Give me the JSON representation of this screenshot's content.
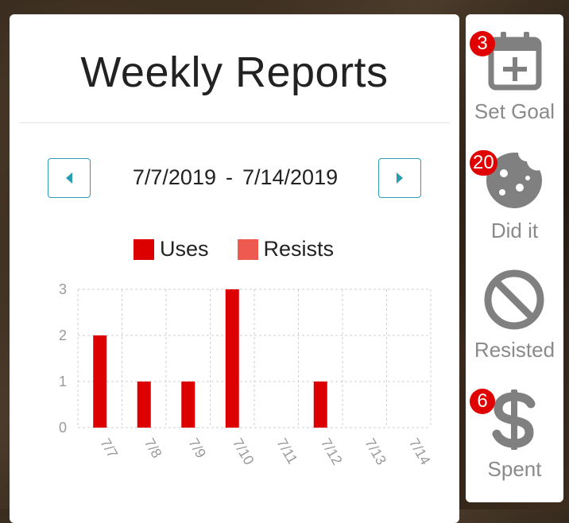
{
  "header": {
    "title": "Weekly Reports"
  },
  "date_range": {
    "start": "7/7/2019",
    "separator": "-",
    "end": "7/14/2019"
  },
  "legend": [
    {
      "label": "Uses",
      "color": "#dd0000"
    },
    {
      "label": "Resists",
      "color": "#ee5a4f"
    }
  ],
  "chart_data": {
    "type": "bar",
    "categories": [
      "7/7",
      "7/8",
      "7/9",
      "7/10",
      "7/11",
      "7/12",
      "7/13",
      "7/14"
    ],
    "series": [
      {
        "name": "Uses",
        "values": [
          2,
          1,
          1,
          3,
          0,
          1,
          0,
          0
        ],
        "color": "#dd0000"
      },
      {
        "name": "Resists",
        "values": [
          0,
          0,
          0,
          0,
          0,
          0,
          0,
          0
        ],
        "color": "#ee5a4f"
      }
    ],
    "yticks": [
      0,
      1,
      2,
      3
    ],
    "ylim": [
      0,
      3
    ],
    "grid": true,
    "legend_position": "top"
  },
  "sidebar": {
    "items": [
      {
        "label": "Set Goal",
        "badge": "3",
        "icon": "calendar-plus-icon"
      },
      {
        "label": "Did it",
        "badge": "20",
        "icon": "cookie-icon"
      },
      {
        "label": "Resisted",
        "badge": "",
        "icon": "ban-icon"
      },
      {
        "label": "Spent",
        "badge": "6",
        "icon": "dollar-icon"
      }
    ]
  }
}
